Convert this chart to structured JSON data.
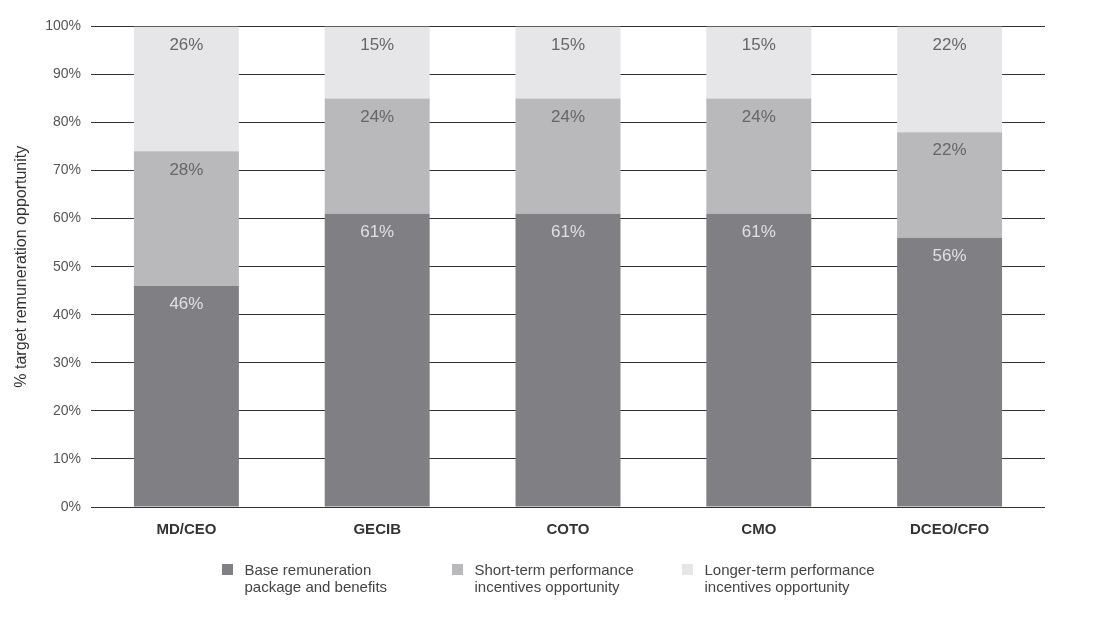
{
  "chart_data": {
    "type": "bar",
    "ylabel": "% target remuneration opportunity",
    "categories": [
      "MD/CEO",
      "GECIB",
      "COTO",
      "CMO",
      "DCEO/CFO"
    ],
    "stacked": true,
    "series": [
      {
        "name": "Base remuneration package and benefits",
        "color": "#808084",
        "values": [
          46,
          61,
          61,
          61,
          56
        ],
        "value_labels": [
          "46%",
          "61%",
          "61%",
          "61%",
          "56%"
        ]
      },
      {
        "name": "Short-term performance incentives opportunity",
        "color": "#b9b9bc",
        "values": [
          28,
          24,
          24,
          24,
          22
        ],
        "value_labels": [
          "28%",
          "24%",
          "24%",
          "24%",
          "22%"
        ]
      },
      {
        "name": "Longer-term performance incentives opportunity",
        "color": "#e6e6e8",
        "values": [
          26,
          15,
          15,
          15,
          22
        ],
        "value_labels": [
          "26%",
          "15%",
          "15%",
          "15%",
          "22%"
        ]
      }
    ],
    "ylim": [
      0,
      100
    ],
    "yticks": [
      {
        "value": 0,
        "label": "0%"
      },
      {
        "value": 10,
        "label": "10%"
      },
      {
        "value": 20,
        "label": "20%"
      },
      {
        "value": 30,
        "label": "30%"
      },
      {
        "value": 40,
        "label": "40%"
      },
      {
        "value": 50,
        "label": "50%"
      },
      {
        "value": 60,
        "label": "60%"
      },
      {
        "value": 70,
        "label": "70%"
      },
      {
        "value": 80,
        "label": "80%"
      },
      {
        "value": 90,
        "label": "90%"
      },
      {
        "value": 100,
        "label": "100%"
      }
    ],
    "grid": "y",
    "legend": "bottom"
  }
}
